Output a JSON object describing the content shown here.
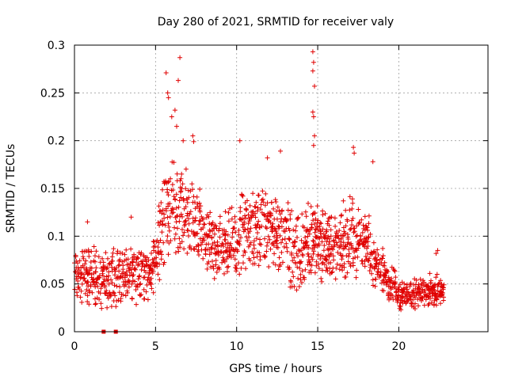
{
  "chart_data": {
    "type": "scatter",
    "title": "Day 280 of 2021, SRMTID for receiver valy",
    "xlabel": "GPS time / hours",
    "ylabel": "SRMTID / TECUs",
    "xlim": [
      0,
      25.5
    ],
    "ylim": [
      0,
      0.3
    ],
    "xticks": [
      0,
      5,
      10,
      15,
      20
    ],
    "xtick_labels": [
      "0",
      "5",
      "10",
      "15",
      "20"
    ],
    "yticks": [
      0,
      0.05,
      0.1,
      0.15,
      0.2,
      0.25,
      0.3
    ],
    "ytick_labels": [
      "0",
      "0.05",
      "0.1",
      "0.15",
      "0.2",
      "0.25",
      "0.3"
    ],
    "grid": true,
    "marker": "+",
    "color": "#e00000",
    "gap_markers_x": [
      1.8,
      2.55
    ],
    "series": [
      {
        "name": "SRMTID",
        "envelope": {
          "hours": [
            0,
            1,
            2,
            3,
            4,
            5,
            5.5,
            6,
            6.5,
            7,
            7.5,
            8,
            9,
            10,
            11,
            12,
            13,
            14,
            14.5,
            15,
            15.5,
            16,
            17,
            18,
            18.5,
            19,
            20,
            21,
            22,
            22.8
          ],
          "median": [
            0.06,
            0.06,
            0.055,
            0.06,
            0.06,
            0.07,
            0.12,
            0.14,
            0.12,
            0.13,
            0.12,
            0.1,
            0.09,
            0.1,
            0.11,
            0.11,
            0.1,
            0.08,
            0.09,
            0.1,
            0.09,
            0.09,
            0.1,
            0.09,
            0.07,
            0.06,
            0.04,
            0.04,
            0.045,
            0.04
          ],
          "spread": [
            0.025,
            0.03,
            0.03,
            0.03,
            0.03,
            0.03,
            0.045,
            0.05,
            0.045,
            0.045,
            0.04,
            0.035,
            0.035,
            0.04,
            0.04,
            0.04,
            0.04,
            0.04,
            0.04,
            0.04,
            0.035,
            0.035,
            0.04,
            0.035,
            0.03,
            0.025,
            0.015,
            0.015,
            0.015,
            0.015
          ]
        },
        "outliers": [
          [
            5.65,
            0.271
          ],
          [
            5.75,
            0.25
          ],
          [
            5.8,
            0.245
          ],
          [
            6.0,
            0.225
          ],
          [
            6.2,
            0.232
          ],
          [
            6.3,
            0.215
          ],
          [
            6.4,
            0.263
          ],
          [
            6.5,
            0.287
          ],
          [
            6.7,
            0.2
          ],
          [
            7.3,
            0.205
          ],
          [
            7.35,
            0.199
          ],
          [
            10.2,
            0.2
          ],
          [
            11.9,
            0.182
          ],
          [
            12.7,
            0.189
          ],
          [
            14.7,
            0.293
          ],
          [
            14.75,
            0.282
          ],
          [
            14.7,
            0.273
          ],
          [
            14.8,
            0.257
          ],
          [
            14.7,
            0.23
          ],
          [
            14.75,
            0.225
          ],
          [
            14.8,
            0.205
          ],
          [
            14.75,
            0.195
          ],
          [
            17.2,
            0.193
          ],
          [
            17.25,
            0.187
          ],
          [
            18.4,
            0.178
          ],
          [
            0.8,
            0.115
          ],
          [
            3.5,
            0.12
          ],
          [
            22.4,
            0.085
          ],
          [
            22.3,
            0.082
          ]
        ]
      }
    ]
  }
}
